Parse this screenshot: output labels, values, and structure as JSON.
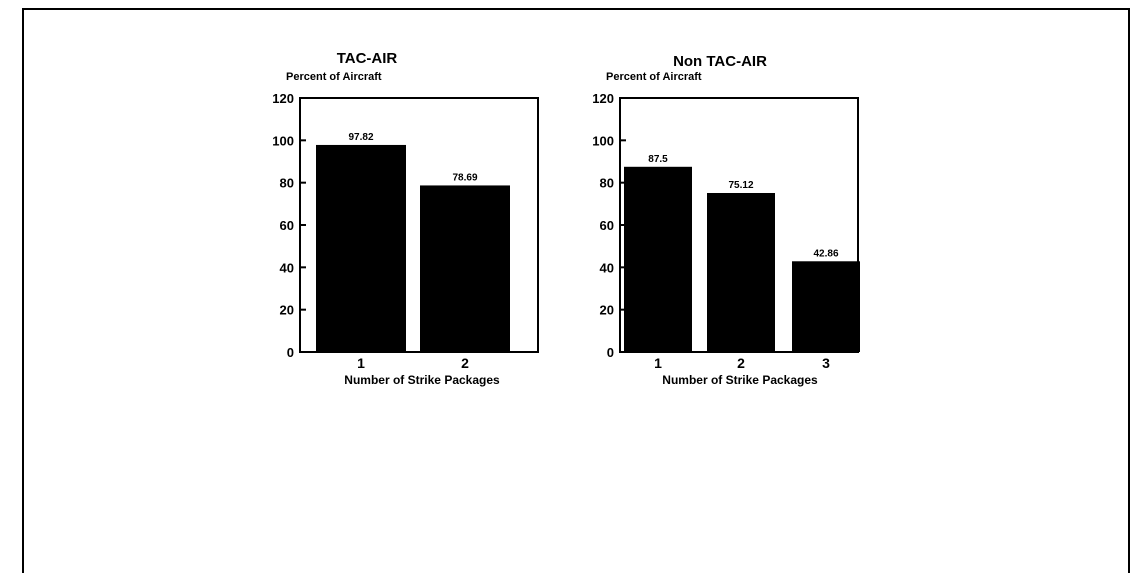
{
  "chart_data": [
    {
      "type": "bar",
      "title": "TAC-AIR",
      "ylabel": "Percent of Aircraft",
      "xlabel": "Number of Strike Packages",
      "categories": [
        "1",
        "2"
      ],
      "values": [
        97.82,
        78.69
      ],
      "data_labels": [
        "97.82",
        "78.69"
      ],
      "ylim": [
        0,
        120
      ],
      "yticks": [
        0,
        20,
        40,
        60,
        80,
        100,
        120
      ],
      "bar_color": "#000000",
      "grid": false,
      "legend": "none"
    },
    {
      "type": "bar",
      "title": "Non TAC-AIR",
      "ylabel": "Percent of Aircraft",
      "xlabel": "Number of Strike Packages",
      "categories": [
        "1",
        "2",
        "3"
      ],
      "values": [
        87.5,
        75.12,
        42.86
      ],
      "data_labels": [
        "87.5",
        "75.12",
        "42.86"
      ],
      "ylim": [
        0,
        120
      ],
      "yticks": [
        0,
        20,
        40,
        60,
        80,
        100,
        120
      ],
      "bar_color": "#000000",
      "grid": false,
      "legend": "none"
    }
  ]
}
